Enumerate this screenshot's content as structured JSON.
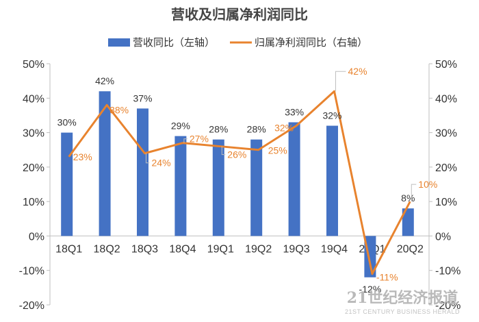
{
  "chart_data": {
    "type": "bar",
    "title": "营收及归属净利润同比",
    "categories": [
      "18Q1",
      "18Q2",
      "18Q3",
      "18Q4",
      "19Q1",
      "19Q2",
      "19Q3",
      "19Q4",
      "20Q1",
      "20Q2"
    ],
    "series": [
      {
        "name": "营收同比（左轴）",
        "type": "bar",
        "axis": "left",
        "values": [
          30,
          42,
          37,
          29,
          28,
          28,
          33,
          32,
          -12,
          8
        ],
        "labels": [
          "30%",
          "42%",
          "37%",
          "29%",
          "28%",
          "28%",
          "33%",
          "32%",
          "-12%",
          "8%"
        ],
        "color": "#4472c4"
      },
      {
        "name": "归属净利润同比（右轴）",
        "type": "line",
        "axis": "right",
        "values": [
          23,
          38,
          24,
          27,
          26,
          25,
          32,
          42,
          -11,
          10
        ],
        "labels": [
          "23%",
          "38%",
          "24%",
          "27%",
          "26%",
          "25%",
          "32%",
          "42%",
          "-11%",
          "10%"
        ],
        "color": "#e8832e"
      }
    ],
    "ylim": [
      -20,
      50
    ],
    "y2lim": [
      -20,
      50
    ],
    "yticks": [
      "50%",
      "40%",
      "30%",
      "20%",
      "10%",
      "0%",
      "-10%",
      "-20%"
    ],
    "y2ticks": [
      "50%",
      "40%",
      "30%",
      "20%",
      "10%",
      "0%",
      "-10%",
      "-20%"
    ],
    "grid": false,
    "legend_position": "top"
  },
  "watermark": {
    "main": "21世纪经济报道",
    "sub": "21ST CENTURY BUSINESS HERALD"
  }
}
